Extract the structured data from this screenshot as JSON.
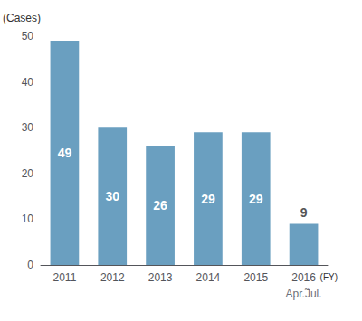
{
  "chart_data": {
    "type": "bar",
    "categories": [
      "2011",
      "2012",
      "2013",
      "2014",
      "2015",
      "2016"
    ],
    "values": [
      49,
      30,
      26,
      29,
      29,
      9
    ],
    "color": "#6a9fc0",
    "ylabel": "(Cases)",
    "ylim": [
      0,
      50
    ],
    "yticks": [
      0,
      10,
      20,
      30,
      40,
      50
    ],
    "grid": false,
    "data_labels": true,
    "annotations": [
      "(FY)",
      "Apr.̃Jul."
    ]
  }
}
